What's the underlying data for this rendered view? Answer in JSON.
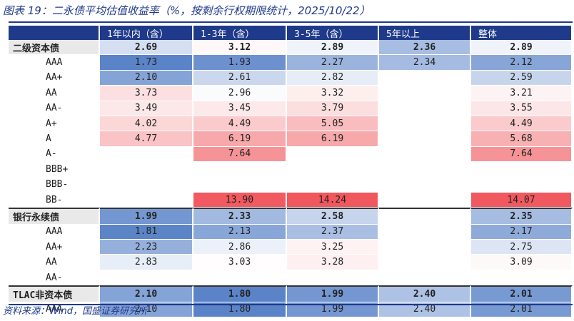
{
  "title": "图表 19：二永债平均估值收益率（%，按剩余行权期限统计，2025/10/22）",
  "source": "资料来源：Wind，国盛证券研究所",
  "chart_data": {
    "type": "table",
    "columns": [
      "1年以内（含）",
      "1-3年（含）",
      "3-5年（含）",
      "5年以上",
      "整体"
    ],
    "rows": [
      {
        "label": "二级资本债",
        "group": true,
        "values": [
          "2.69",
          "3.12",
          "2.89",
          "2.36",
          "2.89"
        ]
      },
      {
        "label": "AAA",
        "group": false,
        "values": [
          "1.73",
          "1.93",
          "2.27",
          "2.34",
          "2.12"
        ]
      },
      {
        "label": "AA+",
        "group": false,
        "values": [
          "2.10",
          "2.61",
          "2.82",
          "",
          "2.59"
        ]
      },
      {
        "label": "AA",
        "group": false,
        "values": [
          "3.73",
          "2.96",
          "3.32",
          "",
          "3.21"
        ]
      },
      {
        "label": "AA-",
        "group": false,
        "values": [
          "3.49",
          "3.45",
          "3.79",
          "",
          "3.55"
        ]
      },
      {
        "label": "A+",
        "group": false,
        "values": [
          "4.02",
          "4.49",
          "5.05",
          "",
          "4.49"
        ]
      },
      {
        "label": "A",
        "group": false,
        "values": [
          "4.77",
          "6.19",
          "6.19",
          "",
          "5.68"
        ]
      },
      {
        "label": "A-",
        "group": false,
        "values": [
          "",
          "7.64",
          "",
          "",
          "7.64"
        ]
      },
      {
        "label": "BBB+",
        "group": false,
        "values": [
          "",
          "",
          "",
          "",
          ""
        ]
      },
      {
        "label": "BBB-",
        "group": false,
        "values": [
          "",
          "",
          "",
          "",
          ""
        ]
      },
      {
        "label": "BB-",
        "group": false,
        "values": [
          "",
          "13.90",
          "14.24",
          "",
          "14.07"
        ]
      },
      {
        "label": "银行永续债",
        "group": true,
        "values": [
          "1.99",
          "2.33",
          "2.58",
          "",
          "2.35"
        ]
      },
      {
        "label": "AAA",
        "group": false,
        "values": [
          "1.81",
          "2.13",
          "2.37",
          "",
          "2.17"
        ]
      },
      {
        "label": "AA+",
        "group": false,
        "values": [
          "2.23",
          "2.86",
          "3.25",
          "",
          "2.75"
        ]
      },
      {
        "label": "AA",
        "group": false,
        "values": [
          "2.83",
          "3.03",
          "3.28",
          "",
          "3.09"
        ]
      },
      {
        "label": "AA-",
        "group": false,
        "values": [
          "",
          "",
          "",
          "",
          ""
        ]
      },
      {
        "label": "TLAC非资本债",
        "group": true,
        "values": [
          "2.10",
          "1.80",
          "1.99",
          "2.40",
          "2.01"
        ]
      },
      {
        "label": "AAA",
        "group": false,
        "values": [
          "2.10",
          "1.80",
          "1.99",
          "2.40",
          "2.01"
        ]
      }
    ],
    "color_scale": {
      "low": "#5b84c8",
      "mid": "#ffffff",
      "high": "#f0585e"
    }
  }
}
